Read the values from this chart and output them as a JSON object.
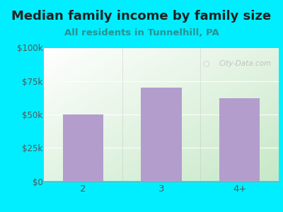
{
  "title": "Median family income by family size",
  "subtitle": "All residents in Tunnelhill, PA",
  "categories": [
    "2",
    "3",
    "4+"
  ],
  "values": [
    50000,
    70000,
    62000
  ],
  "bar_color": "#b39dcc",
  "background_color": "#00eeff",
  "plot_bg_left": "#c8eacc",
  "plot_bg_right": "#f0f8ff",
  "title_color": "#222222",
  "subtitle_color": "#2a9090",
  "tick_color": "#555555",
  "ylim": [
    0,
    100000
  ],
  "yticks": [
    0,
    25000,
    50000,
    75000,
    100000
  ],
  "ytick_labels": [
    "$0",
    "$25k",
    "$50k",
    "$75k",
    "$100k"
  ],
  "watermark": "City-Data.com",
  "title_fontsize": 13,
  "subtitle_fontsize": 9.5,
  "tick_fontsize": 8.5
}
